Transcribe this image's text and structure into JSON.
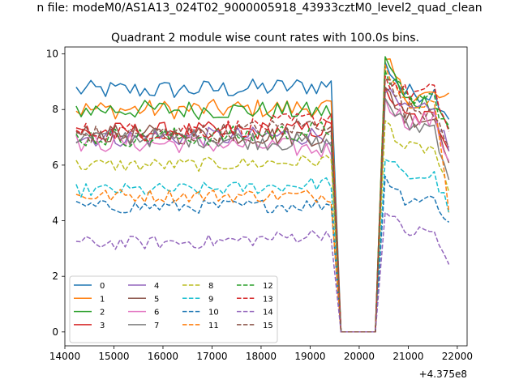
{
  "figure": {
    "suptitle": "n file: modeM0/AS1A13_024T02_9000005918_43933cztM0_level2_quad_clean"
  },
  "chart_data": {
    "type": "line",
    "title": "Quadrant 2 module wise count rates with 100.0s bins.",
    "xlabel": "",
    "ylabel": "",
    "x_offset_label": "+4.375e8",
    "xlim": [
      14000,
      22200
    ],
    "ylim": [
      -0.5,
      10.25
    ],
    "xticks": [
      14000,
      15000,
      16000,
      17000,
      18000,
      19000,
      20000,
      21000,
      22000
    ],
    "yticks": [
      0,
      2,
      4,
      6,
      8,
      10
    ],
    "grid": false,
    "legend": {
      "placement": "lower-left",
      "columns": 4
    },
    "x_start": 14230,
    "x_step": 100,
    "gap": {
      "drop_start": 19530,
      "zero_start": 19630,
      "zero_end": 20330,
      "rise_end": 20530
    },
    "end_x": 21830,
    "series": [
      {
        "name": "0",
        "color": "#1f77b4",
        "dash": "solid",
        "level": 8.7,
        "pre_end": 8.9,
        "post_start": 9.7,
        "post_level": 8.6,
        "post_end": 7.8
      },
      {
        "name": "1",
        "color": "#ff7f0e",
        "dash": "solid",
        "level": 8.0,
        "pre_end": 8.1,
        "post_start": 9.8,
        "post_level": 8.5,
        "post_end": 8.3
      },
      {
        "name": "2",
        "color": "#2ca02c",
        "dash": "solid",
        "level": 8.0,
        "pre_end": 7.9,
        "post_start": 9.9,
        "post_level": 8.3,
        "post_end": 7.4
      },
      {
        "name": "3",
        "color": "#d62728",
        "dash": "solid",
        "level": 7.2,
        "pre_end": 7.3,
        "post_start": 8.8,
        "post_level": 7.7,
        "post_end": 6.8
      },
      {
        "name": "4",
        "color": "#9467bd",
        "dash": "solid",
        "level": 7.0,
        "pre_end": 7.1,
        "post_start": 8.6,
        "post_level": 7.9,
        "post_end": 6.6
      },
      {
        "name": "5",
        "color": "#8c564b",
        "dash": "solid",
        "level": 7.1,
        "pre_end": 7.0,
        "post_start": 8.8,
        "post_level": 7.7,
        "post_end": 6.4
      },
      {
        "name": "6",
        "color": "#e377c2",
        "dash": "solid",
        "level": 6.8,
        "pre_end": 6.5,
        "post_start": 8.4,
        "post_level": 7.6,
        "post_end": 6.2
      },
      {
        "name": "7",
        "color": "#7f7f7f",
        "dash": "solid",
        "level": 7.0,
        "pre_end": 6.7,
        "post_start": 8.4,
        "post_level": 7.4,
        "post_end": 5.6
      },
      {
        "name": "8",
        "color": "#bcbd22",
        "dash": "dash",
        "level": 6.0,
        "pre_end": 6.2,
        "post_start": 7.6,
        "post_level": 6.6,
        "post_end": 4.8
      },
      {
        "name": "9",
        "color": "#17becf",
        "dash": "dash",
        "level": 5.1,
        "pre_end": 5.4,
        "post_start": 6.2,
        "post_level": 5.6,
        "post_end": 4.4
      },
      {
        "name": "10",
        "color": "#1f77b4",
        "dash": "dash",
        "level": 4.5,
        "pre_end": 4.6,
        "post_start": 5.6,
        "post_level": 4.8,
        "post_end": 3.9
      },
      {
        "name": "11",
        "color": "#ff7f0e",
        "dash": "dash",
        "level": 4.9,
        "pre_end": 4.9,
        "post_start": 9.6,
        "post_level": 8.3,
        "post_end": 4.3
      },
      {
        "name": "12",
        "color": "#2ca02c",
        "dash": "dash",
        "level": 7.0,
        "pre_end": 7.3,
        "post_start": 9.4,
        "post_level": 8.4,
        "post_end": 7.2
      },
      {
        "name": "13",
        "color": "#d62728",
        "dash": "dash",
        "level": 7.2,
        "pre_end": 7.8,
        "post_start": 9.2,
        "post_level": 8.6,
        "post_end": 7.3
      },
      {
        "name": "14",
        "color": "#9467bd",
        "dash": "dash",
        "level": 3.2,
        "pre_end": 3.6,
        "post_start": 4.3,
        "post_level": 3.6,
        "post_end": 2.3
      },
      {
        "name": "15",
        "color": "#8c564b",
        "dash": "dash",
        "level": 7.1,
        "pre_end": 7.6,
        "post_start": 9.1,
        "post_level": 8.0,
        "post_end": 6.9
      }
    ]
  }
}
